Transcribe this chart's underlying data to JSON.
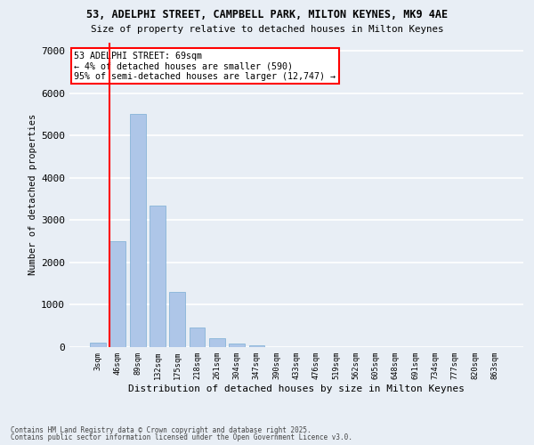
{
  "title1": "53, ADELPHI STREET, CAMPBELL PARK, MILTON KEYNES, MK9 4AE",
  "title2": "Size of property relative to detached houses in Milton Keynes",
  "xlabel": "Distribution of detached houses by size in Milton Keynes",
  "ylabel": "Number of detached properties",
  "categories": [
    "3sqm",
    "46sqm",
    "89sqm",
    "132sqm",
    "175sqm",
    "218sqm",
    "261sqm",
    "304sqm",
    "347sqm",
    "390sqm",
    "433sqm",
    "476sqm",
    "519sqm",
    "562sqm",
    "605sqm",
    "648sqm",
    "691sqm",
    "734sqm",
    "777sqm",
    "820sqm",
    "863sqm"
  ],
  "values": [
    100,
    2500,
    5500,
    3350,
    1300,
    460,
    220,
    90,
    50,
    0,
    0,
    0,
    0,
    0,
    0,
    0,
    0,
    0,
    0,
    0,
    0
  ],
  "bar_color": "#aec6e8",
  "bar_edge_color": "#7aadd4",
  "vline_color": "red",
  "vline_position": 0.58,
  "annotation_text": "53 ADELPHI STREET: 69sqm\n← 4% of detached houses are smaller (590)\n95% of semi-detached houses are larger (12,747) →",
  "annotation_box_color": "white",
  "annotation_box_edge": "red",
  "bg_color": "#e8eef5",
  "grid_color": "white",
  "footer1": "Contains HM Land Registry data © Crown copyright and database right 2025.",
  "footer2": "Contains public sector information licensed under the Open Government Licence v3.0.",
  "ylim": [
    0,
    7200
  ],
  "yticks": [
    0,
    1000,
    2000,
    3000,
    4000,
    5000,
    6000,
    7000
  ]
}
